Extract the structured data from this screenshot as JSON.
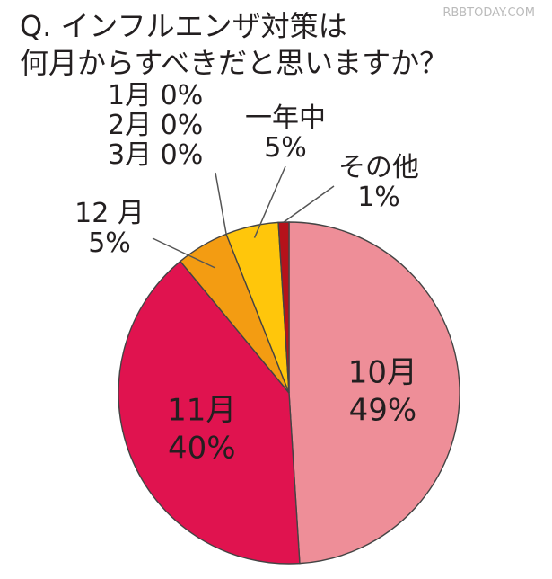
{
  "watermark": "RBBTODAY.COM",
  "chart_data": {
    "type": "pie",
    "title_lines": [
      "Q. インフルエンザ対策は",
      "何月からすべきだと思いますか？"
    ],
    "start_angle_deg": 0,
    "direction": "clockwise",
    "slices": [
      {
        "category": "10月",
        "value": 49,
        "percent_label": "49%",
        "color": "#EE8E98"
      },
      {
        "category": "11月",
        "value": 40,
        "percent_label": "40%",
        "color": "#E0134F"
      },
      {
        "category": "12 月",
        "value": 5,
        "percent_label": "5%",
        "color": "#F39C12"
      },
      {
        "category": "1月",
        "value": 0,
        "percent_label": "0%",
        "color": "#F39C12"
      },
      {
        "category": "2月",
        "value": 0,
        "percent_label": "0%",
        "color": "#F39C12"
      },
      {
        "category": "3月",
        "value": 0,
        "percent_label": "0%",
        "color": "#F39C12"
      },
      {
        "category": "一年中",
        "value": 5,
        "percent_label": "5%",
        "color": "#FFC60B"
      },
      {
        "category": "その他",
        "value": 1,
        "percent_label": "1%",
        "color": "#B5121B"
      }
    ]
  }
}
